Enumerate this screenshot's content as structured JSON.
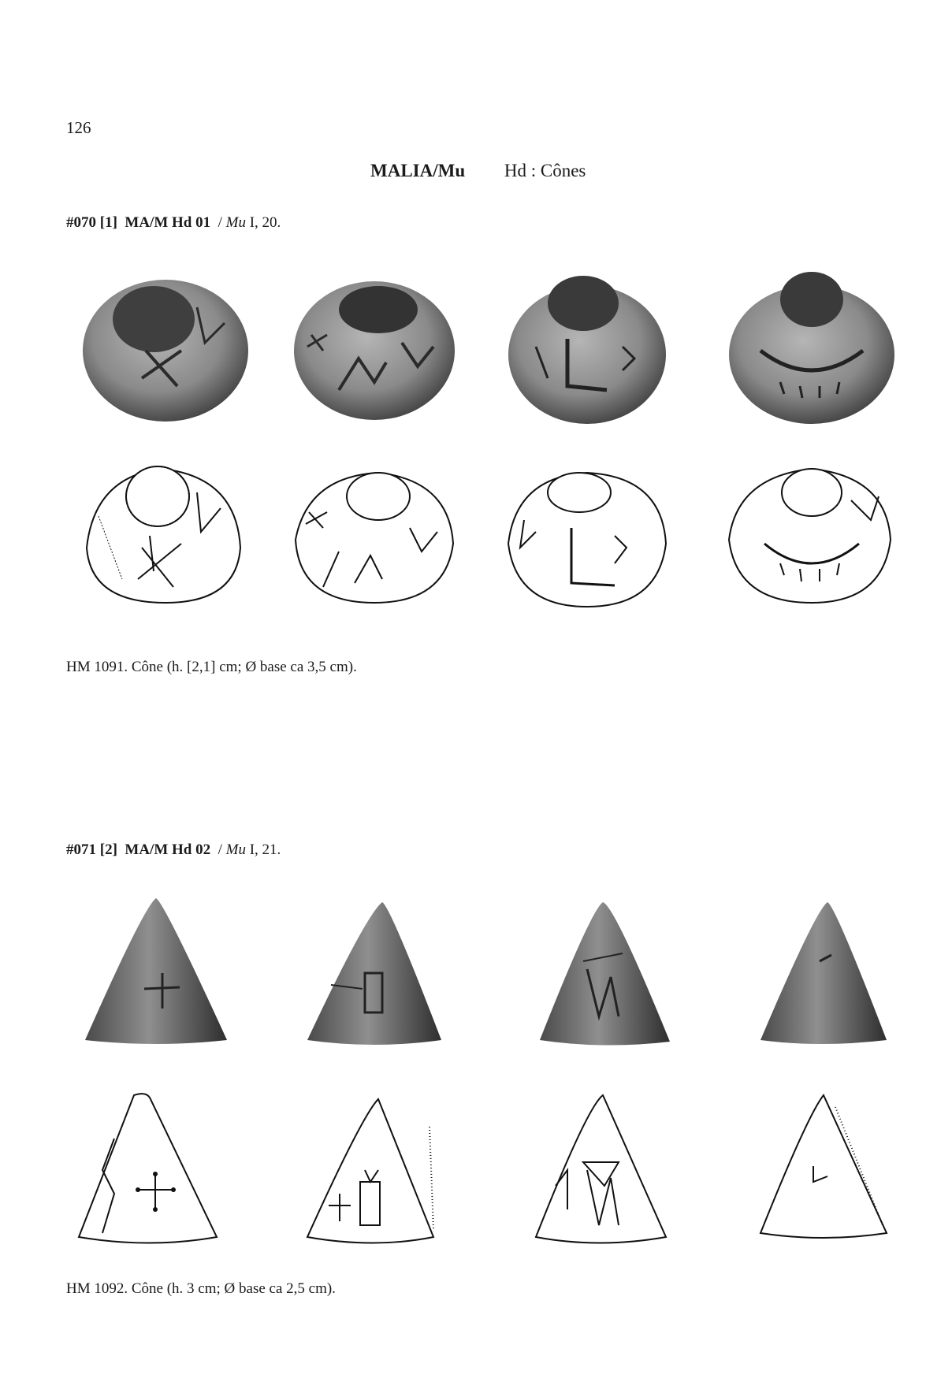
{
  "page": {
    "number": "126",
    "header": {
      "site": "MALIA/Mu",
      "category": "Hd : Cônes"
    }
  },
  "entries": [
    {
      "id": "#070",
      "num": "[1]",
      "designation": "MA/M Hd 01",
      "ref_prefix": "/",
      "ref_italic": "Mu",
      "ref_rest": "I, 20.",
      "caption": "HM 1091. Cône (h. [2,1] cm; Ø base ca 3,5 cm).",
      "object_shape": "low-cone",
      "views": 4
    },
    {
      "id": "#071",
      "num": "[2]",
      "designation": "MA/M Hd 02",
      "ref_prefix": "/",
      "ref_italic": "Mu",
      "ref_rest": "I, 21.",
      "caption": "HM 1092. Cône (h. 3 cm; Ø base ca 2,5 cm).",
      "object_shape": "tall-cone",
      "views": 4
    }
  ]
}
